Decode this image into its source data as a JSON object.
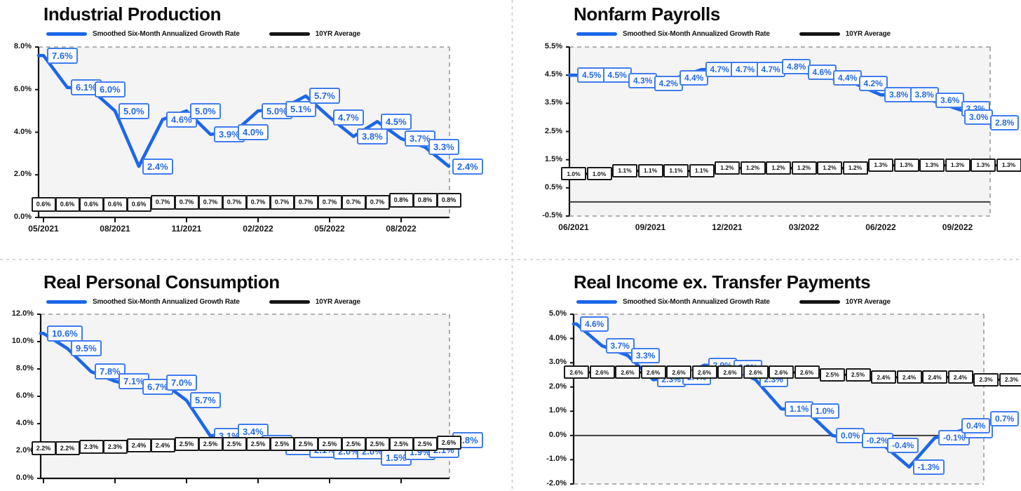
{
  "page": {
    "background": "#ffffff"
  },
  "colors": {
    "blue_line": "#1c67e8",
    "blue_label_border": "#3f7cf0",
    "blue_label_text": "#2268ea",
    "black_line": "#141414",
    "plot_background": "#f4f4f4",
    "dashed_border": "#9a9a9a",
    "quadrant_separator": "#d0d0d0",
    "axis": "#111111"
  },
  "chart_data": [
    {
      "type": "line",
      "title": "Industrial Production",
      "legend_position": "top",
      "ylim": [
        0.0,
        8.0
      ],
      "y_tick_labels": [
        "8.0%",
        "6.0%",
        "4.0%",
        "2.0%",
        "0.0%"
      ],
      "x_tick_labels": [
        "05/2021",
        "08/2021",
        "11/2021",
        "02/2022",
        "05/2022",
        "08/2022"
      ],
      "x_tick_point_indices": [
        0,
        3,
        6,
        9,
        12,
        15
      ],
      "n_points": 18,
      "data_labels": true,
      "grid": false,
      "series": [
        {
          "name": "Smoothed Six-Month Annualized Growth Rate",
          "color": "#1c67e8",
          "values": [
            7.6,
            6.1,
            6.0,
            5.0,
            2.4,
            4.6,
            5.0,
            3.9,
            4.0,
            5.0,
            5.1,
            5.7,
            4.7,
            3.8,
            4.5,
            3.7,
            3.3,
            2.4
          ]
        },
        {
          "name": "10YR Average",
          "color": "#141414",
          "values": [
            0.6,
            0.6,
            0.6,
            0.6,
            0.6,
            0.7,
            0.7,
            0.7,
            0.7,
            0.7,
            0.7,
            0.7,
            0.7,
            0.7,
            0.7,
            0.8,
            0.8,
            0.8
          ]
        }
      ]
    },
    {
      "type": "line",
      "title": "Nonfarm Payrolls",
      "legend_position": "top",
      "ylim": [
        -0.5,
        5.5
      ],
      "y_tick_labels": [
        "5.5%",
        "4.5%",
        "3.5%",
        "2.5%",
        "1.5%",
        "0.5%",
        "-0.5%"
      ],
      "x_tick_labels": [
        "06/2021",
        "09/2021",
        "12/2021",
        "03/2022",
        "06/2022",
        "09/2022"
      ],
      "x_tick_point_indices": [
        0,
        3,
        6,
        9,
        12,
        15
      ],
      "n_points": 18,
      "data_labels": true,
      "grid": false,
      "series": [
        {
          "name": "Smoothed Six-Month Annualized Growth Rate",
          "color": "#1c67e8",
          "values": [
            4.5,
            4.5,
            4.3,
            4.2,
            4.4,
            4.7,
            4.7,
            4.7,
            4.8,
            4.6,
            4.4,
            4.2,
            3.8,
            3.8,
            3.6,
            3.3,
            3.0,
            2.8
          ]
        },
        {
          "name": "10YR Average",
          "color": "#141414",
          "values": [
            1.0,
            1.0,
            1.1,
            1.1,
            1.1,
            1.1,
            1.2,
            1.2,
            1.2,
            1.2,
            1.2,
            1.2,
            1.3,
            1.3,
            1.3,
            1.3,
            1.3,
            1.3
          ]
        }
      ]
    },
    {
      "type": "line",
      "title": "Real Personal Consumption",
      "legend_position": "top",
      "ylim": [
        0.0,
        12.0
      ],
      "y_tick_labels": [
        "12.0%",
        "10.0%",
        "8.0%",
        "6.0%",
        "4.0%",
        "2.0%",
        "0.0%"
      ],
      "x_tick_labels": [],
      "x_axis_labels_cut_off": true,
      "n_points": 18,
      "data_labels": true,
      "grid": false,
      "occluded_label_indices": [
        9,
        10,
        11
      ],
      "series": [
        {
          "name": "Smoothed Six-Month Annualized Growth Rate",
          "color": "#1c67e8",
          "values": [
            10.6,
            9.5,
            7.8,
            7.1,
            6.7,
            7.0,
            5.7,
            3.1,
            3.4,
            2.6,
            2.3,
            2.1,
            2.0,
            2.0,
            1.5,
            1.9,
            2.1,
            2.8
          ]
        },
        {
          "name": "10YR Average",
          "color": "#141414",
          "values": [
            2.2,
            2.2,
            2.3,
            2.3,
            2.4,
            2.4,
            2.5,
            2.5,
            2.5,
            2.5,
            2.5,
            2.5,
            2.5,
            2.5,
            2.5,
            2.5,
            2.5,
            2.6
          ]
        }
      ]
    },
    {
      "type": "line",
      "title": "Real Income ex. Transfer Payments",
      "legend_position": "top",
      "ylim": [
        -2.0,
        5.0
      ],
      "y_tick_labels": [
        "5.0%",
        "4.0%",
        "3.0%",
        "2.0%",
        "1.0%",
        "0.0%",
        "-1.0%",
        "-2.0%"
      ],
      "x_tick_labels": [],
      "x_axis_labels_cut_off": true,
      "n_points": 18,
      "data_labels": true,
      "grid": false,
      "occluded_label_indices": [
        5,
        6
      ],
      "series": [
        {
          "name": "Smoothed Six-Month Annualized Growth Rate",
          "color": "#1c67e8",
          "values": [
            4.6,
            3.7,
            3.3,
            2.3,
            2.4,
            2.9,
            2.8,
            2.3,
            1.1,
            1.0,
            0.0,
            -0.2,
            -0.4,
            -1.3,
            -0.1,
            0.2,
            0.4,
            0.7
          ]
        },
        {
          "name": "10YR Average",
          "color": "#141414",
          "values": [
            2.6,
            2.6,
            2.6,
            2.6,
            2.6,
            2.6,
            2.6,
            2.6,
            2.6,
            2.6,
            2.5,
            2.5,
            2.4,
            2.4,
            2.4,
            2.4,
            2.3,
            2.3
          ]
        }
      ]
    }
  ]
}
